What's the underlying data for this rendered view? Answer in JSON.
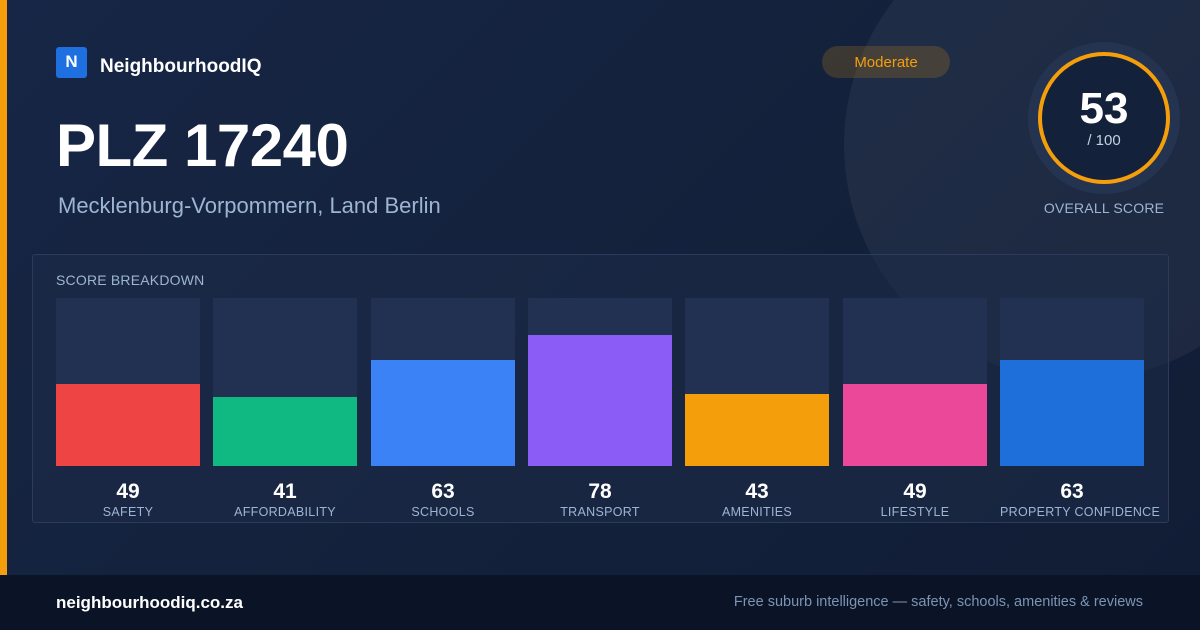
{
  "brand": {
    "logo_letter": "N",
    "name": "NeighbourhoodIQ"
  },
  "badge": {
    "label": "Moderate",
    "color": "#f59e0b"
  },
  "location": {
    "title": "PLZ 17240",
    "subtitle": "Mecklenburg-Vorpommern, Land Berlin"
  },
  "overall": {
    "score": "53",
    "max": "/ 100",
    "label": "OVERALL SCORE",
    "ring_color": "#f59e0b"
  },
  "breakdown": {
    "title": "SCORE BREAKDOWN",
    "max_score": 100,
    "items": [
      {
        "label": "SAFETY",
        "value": 49,
        "display": "49",
        "color": "#ef4444"
      },
      {
        "label": "AFFORDABILITY",
        "value": 41,
        "display": "41",
        "color": "#10b981"
      },
      {
        "label": "SCHOOLS",
        "value": 63,
        "display": "63",
        "color": "#3b82f6"
      },
      {
        "label": "TRANSPORT",
        "value": 78,
        "display": "78",
        "color": "#8b5cf6"
      },
      {
        "label": "AMENITIES",
        "value": 43,
        "display": "43",
        "color": "#f59e0b"
      },
      {
        "label": "LIFESTYLE",
        "value": 49,
        "display": "49",
        "color": "#ec4899"
      },
      {
        "label": "PROPERTY CONFIDENCE",
        "value": 63,
        "display": "63",
        "color": "#1e6fd9"
      }
    ]
  },
  "footer": {
    "domain": "neighbourhoodiq.co.za",
    "tagline": "Free suburb intelligence — safety, schools, amenities & reviews"
  }
}
